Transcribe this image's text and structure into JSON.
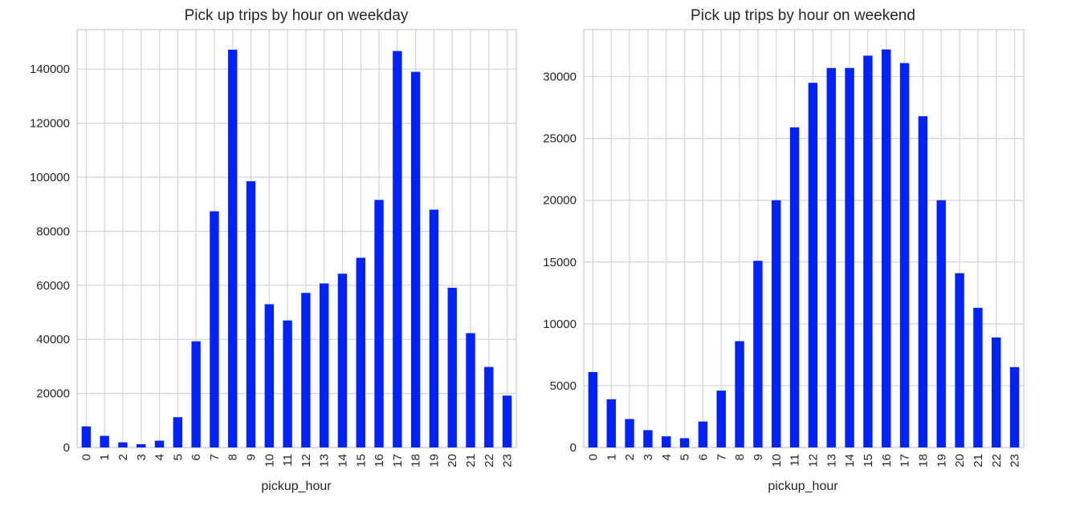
{
  "colors": {
    "bar": "#0022ff",
    "grid": "#d4d4d4"
  },
  "chart_data": [
    {
      "type": "bar",
      "title": "Pick up trips by hour on weekday",
      "xlabel": "pickup_hour",
      "ylabel": "",
      "categories": [
        "0",
        "1",
        "2",
        "3",
        "4",
        "5",
        "6",
        "7",
        "8",
        "9",
        "10",
        "11",
        "12",
        "13",
        "14",
        "15",
        "16",
        "17",
        "18",
        "19",
        "20",
        "21",
        "22",
        "23"
      ],
      "values": [
        7800,
        4300,
        1900,
        1200,
        2500,
        11200,
        39300,
        87400,
        147200,
        98500,
        53000,
        47000,
        57200,
        60700,
        64300,
        70200,
        91600,
        146700,
        139000,
        88000,
        59100,
        42300,
        29800,
        19200
      ],
      "yticks": [
        0,
        20000,
        40000,
        60000,
        80000,
        100000,
        120000,
        140000
      ],
      "ylim": [
        0,
        154600
      ],
      "grid": true
    },
    {
      "type": "bar",
      "title": "Pick up trips by hour on weekend",
      "xlabel": "pickup_hour",
      "ylabel": "",
      "categories": [
        "0",
        "1",
        "2",
        "3",
        "4",
        "5",
        "6",
        "7",
        "8",
        "9",
        "10",
        "11",
        "12",
        "13",
        "14",
        "15",
        "16",
        "17",
        "18",
        "19",
        "20",
        "21",
        "22",
        "23"
      ],
      "values": [
        6100,
        3900,
        2300,
        1400,
        900,
        750,
        2100,
        4600,
        8600,
        15100,
        20000,
        25900,
        29500,
        30700,
        30700,
        31700,
        32200,
        31100,
        26800,
        20000,
        14100,
        11300,
        8900,
        6500
      ],
      "yticks": [
        0,
        5000,
        10000,
        15000,
        20000,
        25000,
        30000
      ],
      "ylim": [
        0,
        33800
      ],
      "grid": true
    }
  ]
}
